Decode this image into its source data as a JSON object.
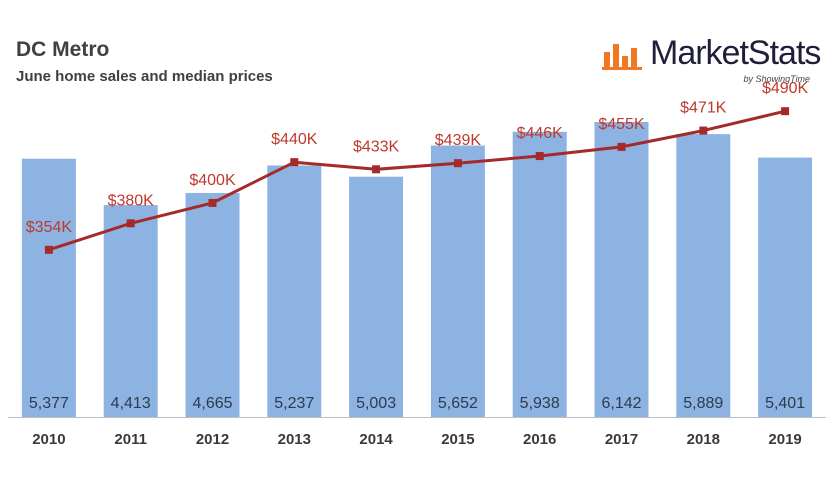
{
  "header": {
    "title": "DC Metro",
    "subtitle": "June home sales and median prices"
  },
  "logo": {
    "name": "MarketStats",
    "tagline": "by ShowingTime"
  },
  "colors": {
    "bar": "#8db3e2",
    "line": "#a52a2a",
    "price_label": "#c0392b",
    "sales_label": "#2f3b4d",
    "year_label": "#3a3a3a",
    "axis": "#bfbfbf",
    "logo_accent": "#f07820"
  },
  "chart_data": {
    "type": "bar+line",
    "title": "DC Metro",
    "subtitle": "June home sales and median prices",
    "categories": [
      "2010",
      "2011",
      "2012",
      "2013",
      "2014",
      "2015",
      "2016",
      "2017",
      "2018",
      "2019"
    ],
    "series": [
      {
        "type": "bar",
        "values": [
          5377,
          4413,
          4665,
          5237,
          5003,
          5652,
          5938,
          6142,
          5889,
          5401
        ],
        "labels": [
          "5,377",
          "4,413",
          "4,665",
          "5,237",
          "5,003",
          "5,652",
          "5,938",
          "6,142",
          "5,889",
          "5,401"
        ]
      },
      {
        "type": "line",
        "values": [
          354,
          380,
          400,
          440,
          433,
          439,
          446,
          455,
          471,
          490
        ],
        "labels": [
          "$354K",
          "$380K",
          "$400K",
          "$440K",
          "$433K",
          "$439K",
          "$446K",
          "$455K",
          "$471K",
          "$490K"
        ]
      }
    ],
    "ylim_sales": [
      0,
      6600
    ],
    "ylim_price": [
      190,
      500
    ],
    "grid": false,
    "legend": "none"
  }
}
